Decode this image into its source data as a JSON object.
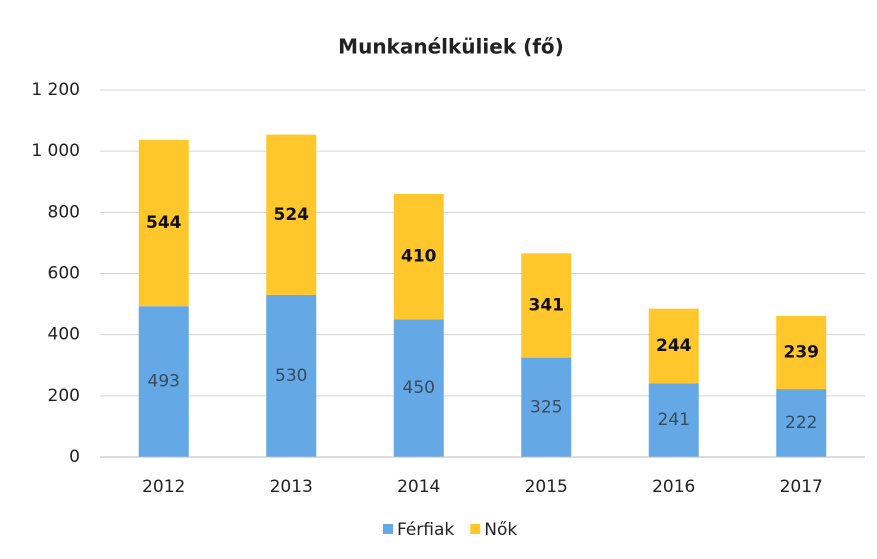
{
  "chart_data": {
    "type": "stacked_bar",
    "title": "Munkanélküliek (fő)",
    "categories": [
      "2012",
      "2013",
      "2014",
      "2015",
      "2016",
      "2017"
    ],
    "series": [
      {
        "name": "Férfiak",
        "color": "#64a8e6",
        "values": [
          493,
          530,
          450,
          325,
          241,
          222
        ]
      },
      {
        "name": "Nők",
        "color": "#ffc72c",
        "values": [
          544,
          524,
          410,
          341,
          244,
          239
        ]
      }
    ],
    "ylim": [
      0,
      1200
    ],
    "yticks": [
      0,
      200,
      400,
      600,
      800,
      {
        "value": 1000,
        "label": "1 000"
      },
      {
        "value": 1200,
        "label": "1 200"
      }
    ],
    "grid": true,
    "legend": "bottom"
  }
}
